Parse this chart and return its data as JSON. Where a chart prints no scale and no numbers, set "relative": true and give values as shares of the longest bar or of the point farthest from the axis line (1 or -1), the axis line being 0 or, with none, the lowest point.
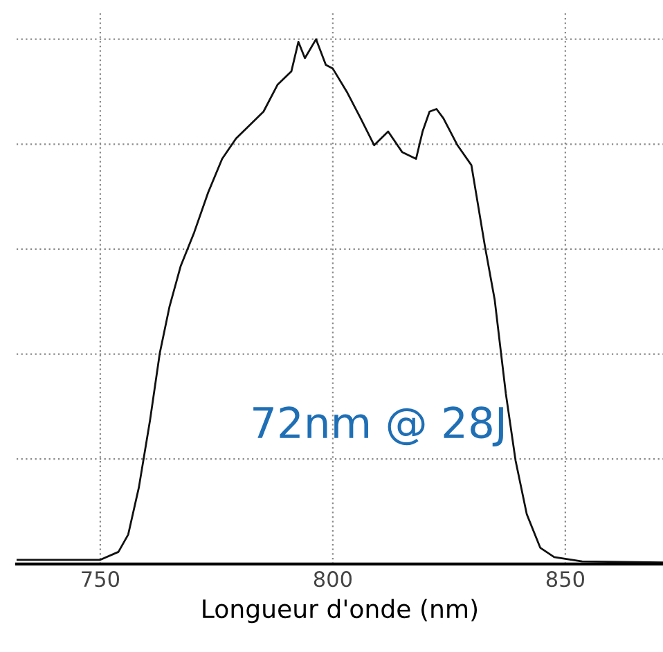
{
  "chart_data": {
    "type": "line",
    "relative": true,
    "xlabel": "Longueur d'onde (nm)",
    "xlim": [
      732,
      871
    ],
    "xticks": [
      750,
      800,
      850
    ],
    "grid": true,
    "annotations": [
      "72nm @ 28J"
    ],
    "series": [
      {
        "color": "#111111",
        "x": [
          732.1,
          750,
          753.9,
          756,
          758.3,
          760.7,
          762.8,
          764.9,
          767.3,
          770.2,
          773.2,
          776.2,
          779.2,
          782.1,
          785.1,
          788.1,
          791.1,
          792.6,
          794,
          796.4,
          798.5,
          800,
          803,
          806,
          808.9,
          811.9,
          814.9,
          817.9,
          819.3,
          820.8,
          822.3,
          823.8,
          826.8,
          829.8,
          832.7,
          834.8,
          837.2,
          839.3,
          841.7,
          844.6,
          847.6,
          853.6,
          870.8
        ],
        "values": [
          0.008,
          0.008,
          0.023,
          0.056,
          0.146,
          0.274,
          0.402,
          0.491,
          0.568,
          0.632,
          0.708,
          0.772,
          0.811,
          0.836,
          0.862,
          0.913,
          0.939,
          0.995,
          0.964,
          1.0,
          0.951,
          0.944,
          0.9,
          0.849,
          0.798,
          0.824,
          0.785,
          0.772,
          0.824,
          0.862,
          0.867,
          0.849,
          0.798,
          0.76,
          0.606,
          0.504,
          0.325,
          0.197,
          0.095,
          0.031,
          0.013,
          0.005,
          0.003
        ]
      }
    ]
  }
}
